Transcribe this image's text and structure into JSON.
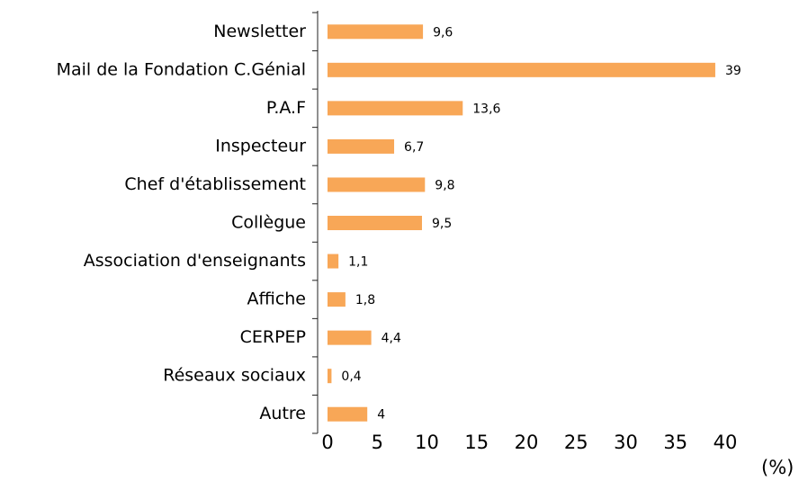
{
  "chart_data": {
    "type": "hbar",
    "categories": [
      "Newsletter",
      "Mail de la Fondation C.Génial",
      "P.A.F",
      "Inspecteur",
      "Chef d'établissement",
      "Collègue",
      "Association d'enseignants",
      "Affiche",
      "CERPEP",
      "Réseaux sociaux",
      "Autre"
    ],
    "values": [
      9.6,
      39,
      13.6,
      6.7,
      9.8,
      9.5,
      1.1,
      1.8,
      4.4,
      0.4,
      4
    ],
    "value_labels": [
      "9,6",
      "39",
      "13,6",
      "6,7",
      "9,8",
      "9,5",
      "1,1",
      "1,8",
      "4,4",
      "0,4",
      "4"
    ],
    "color": "#f8a757",
    "xlabel": "(%)",
    "xlim": [
      0,
      40
    ],
    "xticks": [
      0,
      5,
      10,
      15,
      20,
      25,
      30,
      35,
      40
    ],
    "grid": false
  }
}
